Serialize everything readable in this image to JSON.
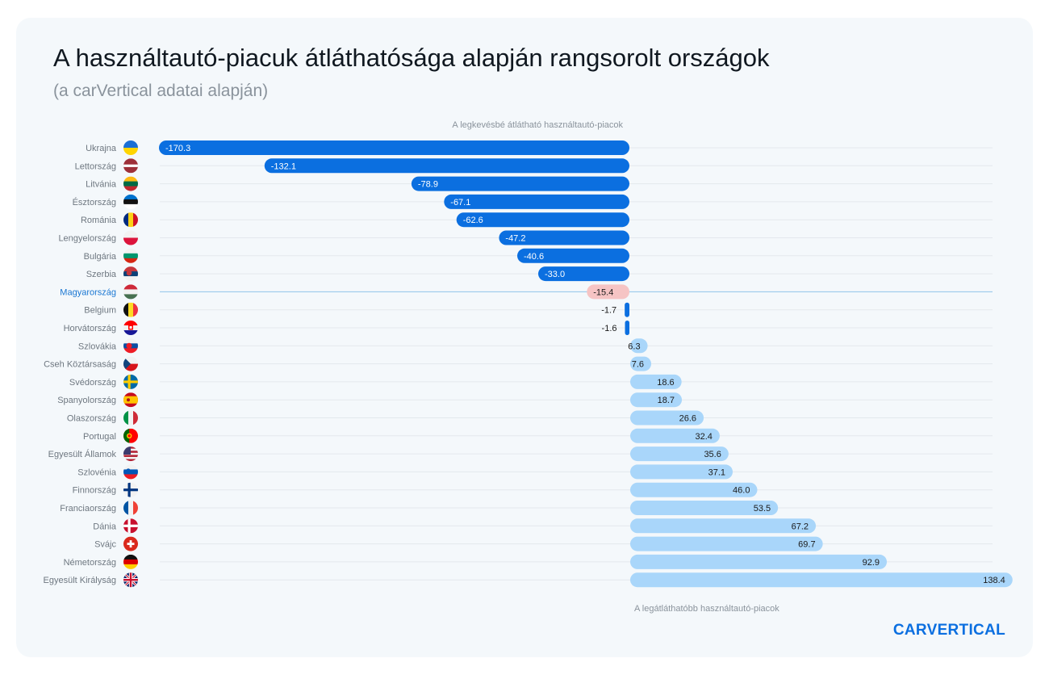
{
  "header": {
    "title": "A használtautó-piacuk átláthatósága alapján rangsorolt országok",
    "subtitle": "(a carVertical adatai alapján)"
  },
  "brand": "CARVERTICAL",
  "colors": {
    "card": "#f4f8fb",
    "negative": "#0b6fe0",
    "positive": "#a9d6fa",
    "highlight": "#f6c4c4",
    "highlight_label": "#1976d2",
    "grid": "#e3e8ed"
  },
  "chart_data": {
    "type": "bar",
    "orientation": "horizontal",
    "title": "A használtautó-piacuk átláthatósága alapján rangsorolt országok",
    "subtitle": "(a carVertical adatai alapján)",
    "annotations": {
      "top": "A legkevésbé átlátható használtautó-piacok",
      "bottom": "A legátláthatóbb használtautó-piacok"
    },
    "highlight": "Magyarország",
    "xlim": [
      -170.3,
      138.4
    ],
    "categories": [
      "Ukrajna",
      "Lettország",
      "Litvánia",
      "Észtország",
      "Románia",
      "Lengyelország",
      "Bulgária",
      "Szerbia",
      "Magyarország",
      "Belgium",
      "Horvátország",
      "Szlovákia",
      "Cseh Köztársaság",
      "Svédország",
      "Spanyolország",
      "Olaszország",
      "Portugal",
      "Egyesült Államok",
      "Szlovénia",
      "Finnország",
      "Franciaország",
      "Dánia",
      "Svájc",
      "Németország",
      "Egyesült Királyság"
    ],
    "values": [
      -170.3,
      -132.1,
      -78.9,
      -67.1,
      -62.6,
      -47.2,
      -40.6,
      -33.0,
      -15.4,
      -1.7,
      -1.6,
      6.3,
      7.6,
      18.6,
      18.7,
      26.6,
      32.4,
      35.6,
      37.1,
      46.0,
      53.5,
      67.2,
      69.7,
      92.9,
      138.4
    ],
    "labels": [
      "-170.3",
      "-132.1",
      "-78.9",
      "-67.1",
      "-62.6",
      "-47.2",
      "-40.6",
      "-33.0",
      "-15.4",
      "-1.7",
      "-1.6",
      "6.3",
      "7.6",
      "18.6",
      "18.7",
      "26.6",
      "32.4",
      "35.6",
      "37.1",
      "46.0",
      "53.5",
      "67.2",
      "69.7",
      "92.9",
      "138.4"
    ],
    "flags": [
      "ua",
      "lv",
      "lt",
      "ee",
      "ro",
      "pl",
      "bg",
      "rs",
      "hu",
      "be",
      "hr",
      "sk",
      "cz",
      "se",
      "es",
      "it",
      "pt",
      "us",
      "si",
      "fi",
      "fr",
      "dk",
      "ch",
      "de",
      "gb"
    ]
  }
}
